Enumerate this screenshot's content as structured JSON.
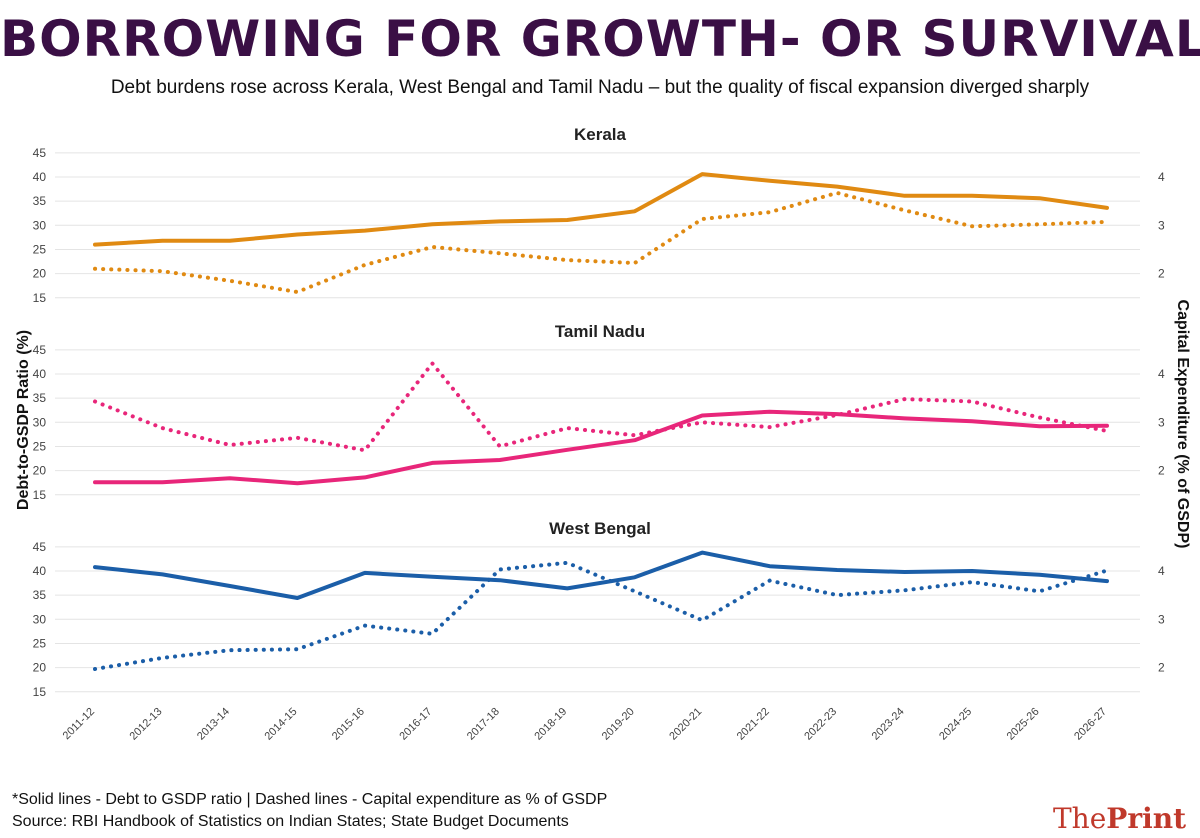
{
  "title": "BORROWING FOR GROWTH- OR SURVIVAL",
  "subtitle": "Debt burdens rose across Kerala, West Bengal and Tamil Nadu – but the quality of fiscal expansion diverged sharply",
  "footnote": "*Solid lines - Debt to GSDP ratio | Dashed lines - Capital expenditure as % of GSDP",
  "source": "Source: RBI Handbook of Statistics on Indian States; State Budget Documents",
  "logo": {
    "part1": "The",
    "part2": "Print"
  },
  "chart_data": {
    "type": "line",
    "ylabel": "Debt-to-GSDP Ratio (%)",
    "y2label": "Capital Expenditure (% of GSDP)",
    "categories": [
      "2011-12",
      "2012-13",
      "2013-14",
      "2014-15",
      "2015-16",
      "2016-17",
      "2017-18",
      "2018-19",
      "2019-20",
      "2020-21",
      "2021-22",
      "2022-23",
      "2023-24",
      "2024-25",
      "2025-26",
      "2026-27"
    ],
    "left_ticks": [
      15,
      20,
      25,
      30,
      35,
      40,
      45
    ],
    "right_ticks": [
      2,
      3,
      4
    ],
    "grid": true,
    "panels": [
      {
        "name": "Kerala",
        "color": "#e08a12",
        "ylim": [
          13.5,
          46
        ],
        "y2lim": [
          1.35,
          4.6
        ],
        "debt": [
          26,
          26.8,
          26.8,
          28.1,
          28.9,
          30.2,
          30.8,
          31.1,
          32.9,
          40.6,
          39.2,
          38,
          36.1,
          36.1,
          35.6,
          33.6
        ],
        "capex": [
          2.1,
          2.05,
          1.85,
          1.62,
          2.18,
          2.55,
          2.42,
          2.28,
          2.22,
          3.13,
          3.27,
          3.67,
          3.31,
          2.98,
          3.02,
          3.07
        ]
      },
      {
        "name": "Tamil Nadu",
        "color": "#e8267a",
        "ylim": [
          13.5,
          46
        ],
        "y2lim": [
          1.35,
          4.6
        ],
        "debt": [
          17.6,
          17.6,
          18.4,
          17.4,
          18.6,
          21.6,
          22.2,
          24.3,
          26.3,
          31.4,
          32.2,
          31.7,
          30.8,
          30.2,
          29.2,
          29.3
        ],
        "capex": [
          3.43,
          2.88,
          2.53,
          2.68,
          2.42,
          4.22,
          2.5,
          2.88,
          2.73,
          3.0,
          2.9,
          3.15,
          3.48,
          3.43,
          3.1,
          2.82
        ]
      },
      {
        "name": "West Bengal",
        "color": "#1b5ea8",
        "ylim": [
          13.5,
          46
        ],
        "y2lim": [
          1.35,
          4.6
        ],
        "debt": [
          40.8,
          39.3,
          36.9,
          34.4,
          39.6,
          38.8,
          38.1,
          36.4,
          38.7,
          43.8,
          41,
          40.2,
          39.8,
          40,
          39.2,
          37.9
        ],
        "capex": [
          1.97,
          2.2,
          2.36,
          2.38,
          2.87,
          2.7,
          4.03,
          4.17,
          3.58,
          2.98,
          3.8,
          3.5,
          3.6,
          3.77,
          3.58,
          4.01
        ]
      }
    ]
  }
}
